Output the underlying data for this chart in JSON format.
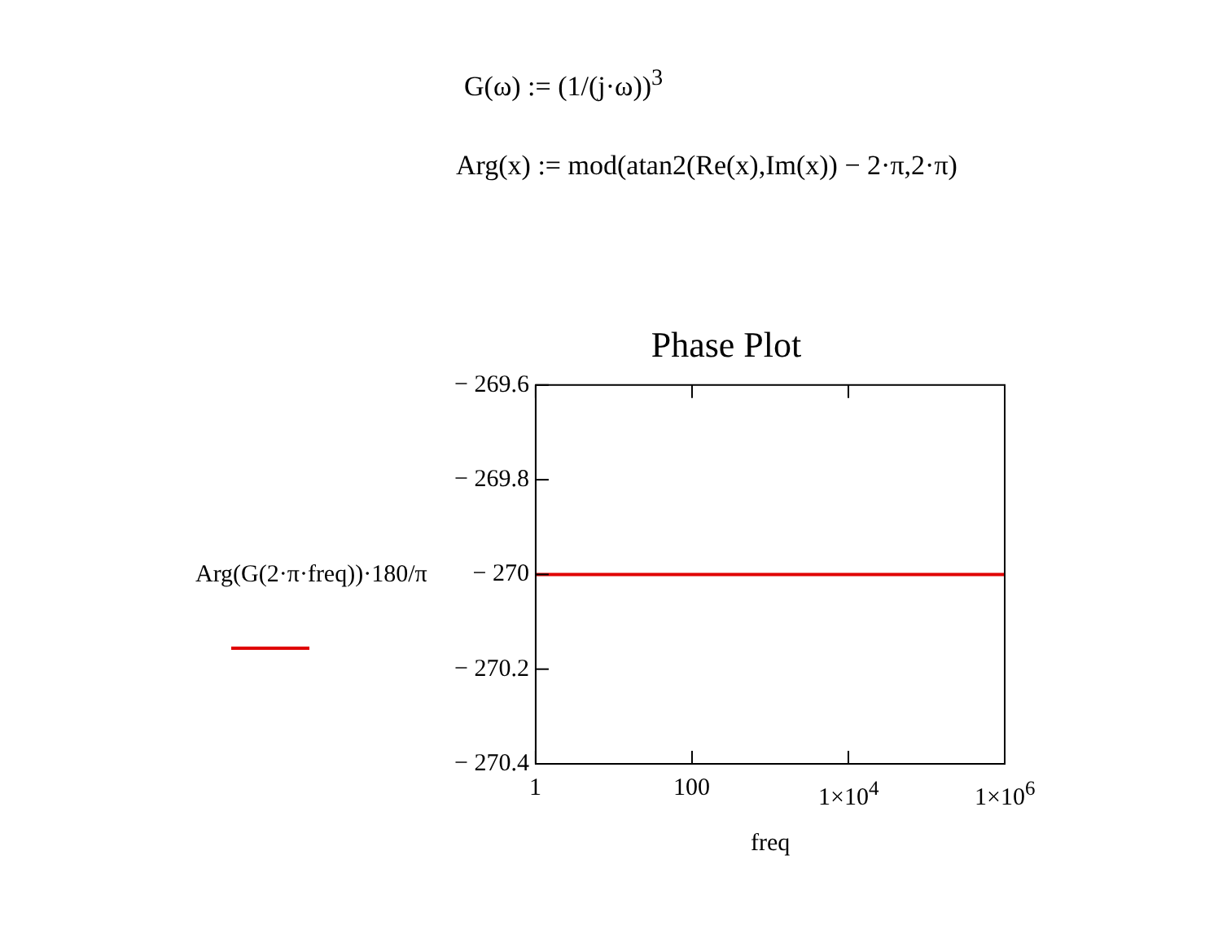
{
  "chart_data": {
    "type": "line",
    "title": "Phase Plot",
    "xlabel": "freq",
    "ylabel": "Arg(G(2·π·freq))·180/π",
    "annotations": [
      "G(ω) := (1/(j·ω))$^{3}$",
      "Arg(x) := mod(atan2(Re(x),Im(x)) − 2·π,2·π)"
    ],
    "log": "x",
    "grid": false,
    "legend": false,
    "series": [
      {
        "color": "#e00000",
        "x": [
          1,
          1000000
        ],
        "values": [
          -270,
          -270
        ]
      }
    ],
    "xlim": [
      1,
      1000000
    ],
    "xticks": [
      1,
      100,
      {
        "value": 10000,
        "label": "1×10$^{4}$"
      },
      {
        "value": 1000000,
        "label": "1×10$^{6}$"
      }
    ],
    "ylim": [
      -270.4,
      -269.6
    ],
    "yticks": [
      {
        "value": -269.6,
        "label": "− 269.6"
      },
      {
        "value": -269.8,
        "label": "− 269.8"
      },
      {
        "value": -270,
        "label": "− 270"
      },
      {
        "value": -270.2,
        "label": "− 270.2"
      },
      {
        "value": -270.4,
        "label": "− 270.4"
      }
    ]
  }
}
